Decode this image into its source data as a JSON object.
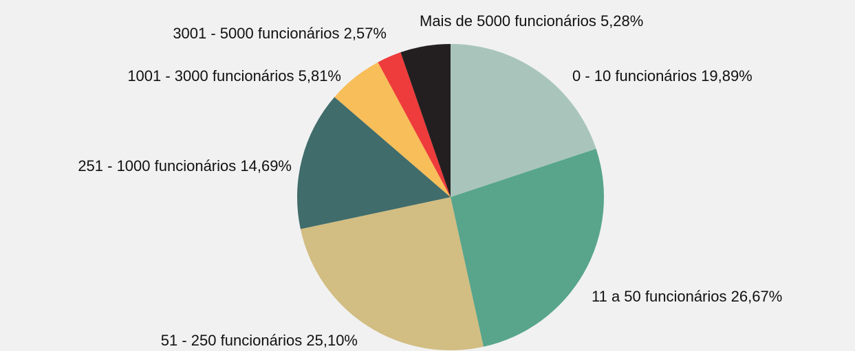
{
  "chart_data": {
    "type": "pie",
    "categories": [
      "0 - 10 funcionários",
      "11 a 50 funcionários",
      "51 - 250 funcionários",
      "251 - 1000 funcionários",
      "1001 - 3000 funcionários",
      "3001 - 5000 funcionários",
      "Mais de 5000 funcionários"
    ],
    "values": [
      19.89,
      26.67,
      25.1,
      14.69,
      5.81,
      2.57,
      5.28
    ],
    "value_labels": [
      "19,89%",
      "26,67%",
      "25,10%",
      "14,69%",
      "5,81%",
      "2,57%",
      "5,28%"
    ],
    "colors": [
      "#a9c5bb",
      "#58a58c",
      "#d2bd82",
      "#406c6b",
      "#f8be5a",
      "#ee3b3b",
      "#231f20"
    ]
  }
}
